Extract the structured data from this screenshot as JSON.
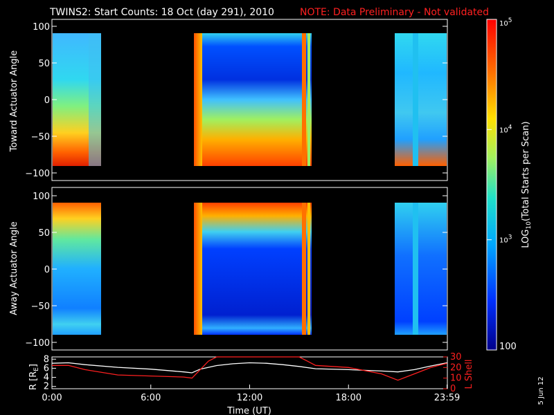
{
  "title_main": "TWINS2: Start Counts: 18 Oct (day 291), 2010",
  "title_note": "NOTE: Data Preliminary - Not validated",
  "date_stamp": "5 Jun 12",
  "colors": {
    "note": "#ff2020",
    "r_line": "#ffffff",
    "l_line": "#ff2020",
    "background": "#000000"
  },
  "chart_data": [
    {
      "type": "heatmap",
      "ylabel": "Toward Actuator Angle",
      "ylim": [
        -110,
        110
      ],
      "y_ticks": [
        "100",
        "50",
        "0",
        "−50",
        "−100"
      ],
      "y_tick_values": [
        100,
        50,
        0,
        -50,
        -100
      ],
      "data_windows_ut": [
        [
          "00:00",
          "02:40"
        ],
        [
          "08:40",
          "16:00"
        ],
        [
          "20:45",
          "23:59"
        ]
      ],
      "angle_range": [
        -90,
        90
      ]
    },
    {
      "type": "heatmap",
      "ylabel": "Away Actuator Angle",
      "ylim": [
        -110,
        110
      ],
      "y_ticks": [
        "100",
        "50",
        "0",
        "−50",
        "−100"
      ],
      "y_tick_values": [
        100,
        50,
        0,
        -50,
        -100
      ],
      "data_windows_ut": [
        [
          "00:00",
          "02:40"
        ],
        [
          "08:40",
          "16:00"
        ],
        [
          "20:45",
          "23:59"
        ]
      ],
      "angle_range": [
        -90,
        90
      ]
    },
    {
      "type": "line",
      "ylabel_left_parts": [
        "R [R",
        "E",
        "]"
      ],
      "ylabel_right": "L Shell",
      "left_ticks": [
        "8",
        "6",
        "4",
        "2"
      ],
      "left_tick_values": [
        8,
        6,
        4,
        2
      ],
      "left_ylim": [
        1.5,
        8.5
      ],
      "right_ticks": [
        "30",
        "20",
        "10",
        "0"
      ],
      "right_tick_values": [
        30,
        20,
        10,
        0
      ],
      "right_ylim": [
        0,
        30
      ],
      "xlabel": "Time (UT)",
      "x_ticks": [
        "0:00",
        "6:00",
        "12:00",
        "18:00",
        "23:59"
      ],
      "x_tick_hours": [
        0,
        6,
        12,
        18,
        23.98
      ],
      "series": [
        {
          "axis": "left",
          "color": "#ffffff",
          "x": [
            0,
            1,
            2,
            4,
            6,
            8,
            8.5,
            9,
            10,
            11,
            12,
            13,
            14,
            15,
            16,
            18,
            20,
            21,
            22,
            23,
            23.98
          ],
          "y": [
            7.1,
            7.2,
            6.8,
            6.2,
            5.8,
            5.2,
            5.0,
            5.8,
            6.6,
            7.0,
            7.2,
            7.1,
            6.8,
            6.4,
            5.9,
            5.7,
            5.4,
            5.2,
            5.7,
            6.5,
            7.2
          ]
        },
        {
          "axis": "right",
          "color": "#ff2020",
          "x": [
            0,
            1,
            2,
            4,
            6,
            8,
            8.5,
            9,
            9.5,
            10,
            15,
            15.5,
            16,
            18,
            20,
            21,
            22,
            23,
            23.98
          ],
          "y": [
            22,
            22,
            18,
            13,
            12,
            11,
            10,
            18,
            26,
            33,
            33,
            26,
            22,
            20,
            14,
            8,
            14,
            20,
            24
          ]
        }
      ]
    }
  ],
  "colorbar": {
    "label_main": "LOG",
    "label_sub": "10",
    "label_rest": "(Total Starts per Scan)",
    "ticks": [
      {
        "base": "10",
        "exp": "5"
      },
      {
        "base": "10",
        "exp": "4"
      },
      {
        "base": "10",
        "exp": "3"
      }
    ],
    "bottom_label": "100",
    "log_range": [
      2,
      5
    ],
    "tick_values": [
      5,
      4,
      3
    ]
  }
}
